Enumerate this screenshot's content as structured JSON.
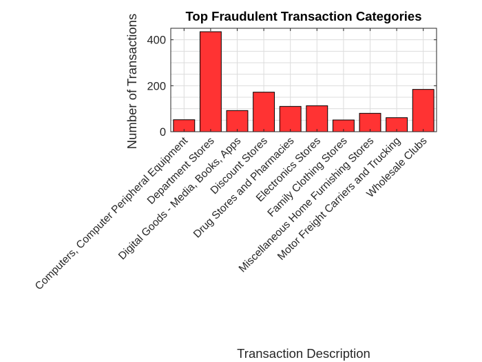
{
  "chart_data": {
    "type": "bar",
    "title": "Top Fraudulent Transaction Categories",
    "xlabel": "Transaction Description",
    "ylabel": "Number of Transactions",
    "categories": [
      "Computers, Computer Peripheral Equipment",
      "Department Stores",
      "Digital Goods - Media, Books, Apps",
      "Discount Stores",
      "Drug Stores and Pharmacies",
      "Electronics Stores",
      "Family Clothing Stores",
      "Miscellaneous Home Furnishing Stores",
      "Motor Freight Carriers and Trucking",
      "Wholesale Clubs"
    ],
    "values": [
      52,
      435,
      92,
      172,
      110,
      113,
      51,
      80,
      61,
      184
    ],
    "ylim": [
      0,
      450
    ],
    "yticks": [
      0,
      200,
      400
    ],
    "grid": true,
    "bar_color": "#ff3333"
  }
}
